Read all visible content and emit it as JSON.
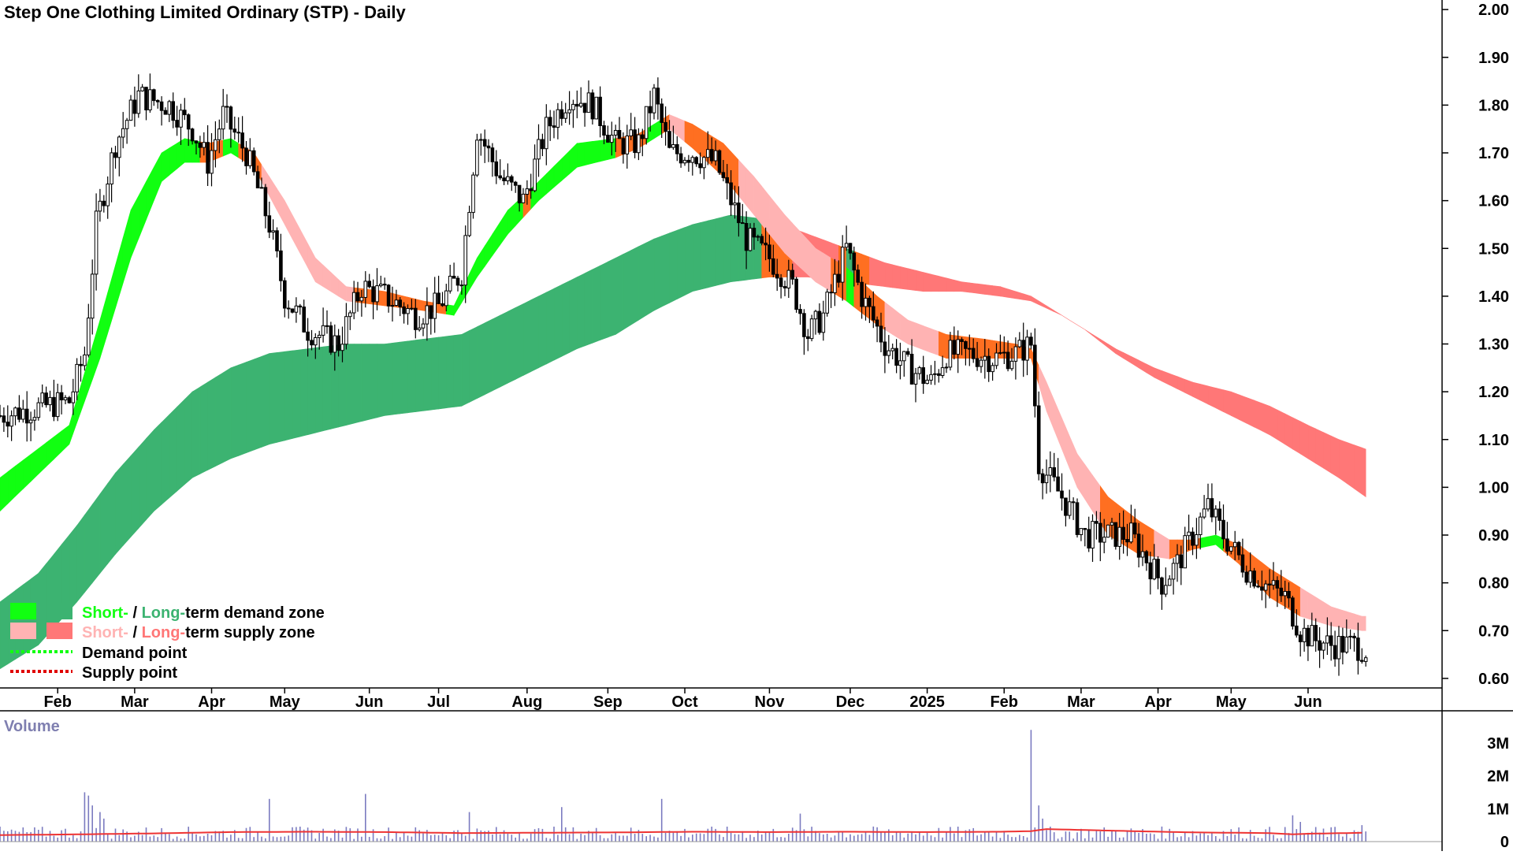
{
  "chart_data": {
    "type": "candlestick",
    "title": "Step One Clothing Limited Ordinary (STP) - Daily",
    "price_axis": {
      "ylim": [
        0.58,
        2.02
      ],
      "ticks": [
        "2.00",
        "1.90",
        "1.80",
        "1.70",
        "1.60",
        "1.50",
        "1.40",
        "1.30",
        "1.20",
        "1.10",
        "1.00",
        "0.90",
        "0.80",
        "0.70",
        "0.60"
      ]
    },
    "x_axis": {
      "range_index": [
        0,
        365
      ],
      "ticks": [
        {
          "label": "Feb",
          "i": 15
        },
        {
          "label": "Mar",
          "i": 35
        },
        {
          "label": "Apr",
          "i": 55
        },
        {
          "label": "May",
          "i": 74
        },
        {
          "label": "Jun",
          "i": 96
        },
        {
          "label": "Jul",
          "i": 114
        },
        {
          "label": "Aug",
          "i": 137
        },
        {
          "label": "Sep",
          "i": 158
        },
        {
          "label": "Oct",
          "i": 178
        },
        {
          "label": "Nov",
          "i": 200
        },
        {
          "label": "Dec",
          "i": 221
        },
        {
          "label": "2025",
          "i": 241
        },
        {
          "label": "Feb",
          "i": 261
        },
        {
          "label": "Mar",
          "i": 281
        },
        {
          "label": "Apr",
          "i": 301
        },
        {
          "label": "May",
          "i": 320
        },
        {
          "label": "Jun",
          "i": 340
        }
      ]
    },
    "price_keypoints": [
      [
        0,
        1.15
      ],
      [
        18,
        1.18
      ],
      [
        22,
        1.28
      ],
      [
        25,
        1.55
      ],
      [
        30,
        1.72
      ],
      [
        36,
        1.82
      ],
      [
        44,
        1.8
      ],
      [
        50,
        1.75
      ],
      [
        54,
        1.68
      ],
      [
        58,
        1.78
      ],
      [
        64,
        1.7
      ],
      [
        70,
        1.55
      ],
      [
        74,
        1.4
      ],
      [
        80,
        1.33
      ],
      [
        88,
        1.3
      ],
      [
        94,
        1.42
      ],
      [
        100,
        1.4
      ],
      [
        108,
        1.36
      ],
      [
        114,
        1.38
      ],
      [
        120,
        1.45
      ],
      [
        124,
        1.75
      ],
      [
        130,
        1.65
      ],
      [
        136,
        1.6
      ],
      [
        142,
        1.75
      ],
      [
        148,
        1.82
      ],
      [
        154,
        1.8
      ],
      [
        160,
        1.72
      ],
      [
        166,
        1.72
      ],
      [
        170,
        1.82
      ],
      [
        174,
        1.7
      ],
      [
        180,
        1.7
      ],
      [
        186,
        1.68
      ],
      [
        190,
        1.6
      ],
      [
        194,
        1.52
      ],
      [
        200,
        1.48
      ],
      [
        206,
        1.42
      ],
      [
        210,
        1.32
      ],
      [
        214,
        1.36
      ],
      [
        220,
        1.5
      ],
      [
        224,
        1.4
      ],
      [
        230,
        1.3
      ],
      [
        236,
        1.25
      ],
      [
        242,
        1.22
      ],
      [
        246,
        1.28
      ],
      [
        252,
        1.28
      ],
      [
        258,
        1.27
      ],
      [
        264,
        1.28
      ],
      [
        268,
        1.3
      ],
      [
        270,
        1.05
      ],
      [
        276,
        0.98
      ],
      [
        282,
        0.9
      ],
      [
        288,
        0.9
      ],
      [
        294,
        0.9
      ],
      [
        298,
        0.85
      ],
      [
        302,
        0.8
      ],
      [
        306,
        0.84
      ],
      [
        310,
        0.9
      ],
      [
        314,
        0.96
      ],
      [
        318,
        0.9
      ],
      [
        324,
        0.83
      ],
      [
        330,
        0.79
      ],
      [
        334,
        0.77
      ],
      [
        338,
        0.7
      ],
      [
        342,
        0.68
      ],
      [
        346,
        0.67
      ],
      [
        352,
        0.67
      ],
      [
        355,
        0.66
      ]
    ],
    "short_term_band": {
      "upper": [
        [
          0,
          1.02
        ],
        [
          18,
          1.13
        ],
        [
          26,
          1.35
        ],
        [
          34,
          1.58
        ],
        [
          42,
          1.7
        ],
        [
          48,
          1.73
        ],
        [
          54,
          1.72
        ],
        [
          60,
          1.73
        ],
        [
          66,
          1.7
        ],
        [
          74,
          1.6
        ],
        [
          82,
          1.48
        ],
        [
          90,
          1.42
        ],
        [
          100,
          1.41
        ],
        [
          110,
          1.39
        ],
        [
          118,
          1.38
        ],
        [
          124,
          1.48
        ],
        [
          132,
          1.58
        ],
        [
          140,
          1.64
        ],
        [
          150,
          1.72
        ],
        [
          160,
          1.73
        ],
        [
          166,
          1.74
        ],
        [
          174,
          1.78
        ],
        [
          180,
          1.76
        ],
        [
          188,
          1.72
        ],
        [
          196,
          1.65
        ],
        [
          204,
          1.57
        ],
        [
          212,
          1.5
        ],
        [
          220,
          1.46
        ],
        [
          228,
          1.4
        ],
        [
          236,
          1.35
        ],
        [
          246,
          1.32
        ],
        [
          256,
          1.31
        ],
        [
          264,
          1.3
        ],
        [
          268,
          1.29
        ],
        [
          272,
          1.22
        ],
        [
          280,
          1.07
        ],
        [
          288,
          0.98
        ],
        [
          296,
          0.93
        ],
        [
          304,
          0.89
        ],
        [
          310,
          0.89
        ],
        [
          316,
          0.9
        ],
        [
          322,
          0.88
        ],
        [
          330,
          0.83
        ],
        [
          338,
          0.79
        ],
        [
          346,
          0.75
        ],
        [
          354,
          0.73
        ]
      ],
      "lower": [
        [
          0,
          0.95
        ],
        [
          18,
          1.09
        ],
        [
          26,
          1.27
        ],
        [
          34,
          1.48
        ],
        [
          42,
          1.64
        ],
        [
          48,
          1.68
        ],
        [
          54,
          1.68
        ],
        [
          60,
          1.7
        ],
        [
          66,
          1.67
        ],
        [
          74,
          1.55
        ],
        [
          82,
          1.43
        ],
        [
          90,
          1.39
        ],
        [
          100,
          1.38
        ],
        [
          110,
          1.37
        ],
        [
          118,
          1.36
        ],
        [
          124,
          1.44
        ],
        [
          132,
          1.53
        ],
        [
          140,
          1.6
        ],
        [
          150,
          1.67
        ],
        [
          160,
          1.69
        ],
        [
          166,
          1.71
        ],
        [
          174,
          1.75
        ],
        [
          180,
          1.71
        ],
        [
          188,
          1.65
        ],
        [
          196,
          1.57
        ],
        [
          204,
          1.49
        ],
        [
          212,
          1.43
        ],
        [
          220,
          1.39
        ],
        [
          228,
          1.34
        ],
        [
          236,
          1.3
        ],
        [
          246,
          1.27
        ],
        [
          256,
          1.27
        ],
        [
          264,
          1.27
        ],
        [
          268,
          1.27
        ],
        [
          272,
          1.16
        ],
        [
          280,
          1.0
        ],
        [
          288,
          0.9
        ],
        [
          296,
          0.86
        ],
        [
          304,
          0.85
        ],
        [
          310,
          0.87
        ],
        [
          316,
          0.88
        ],
        [
          322,
          0.84
        ],
        [
          330,
          0.77
        ],
        [
          338,
          0.73
        ],
        [
          346,
          0.71
        ],
        [
          354,
          0.7
        ]
      ]
    },
    "long_term_band": {
      "upper": [
        [
          0,
          0.76
        ],
        [
          10,
          0.82
        ],
        [
          20,
          0.92
        ],
        [
          30,
          1.03
        ],
        [
          40,
          1.12
        ],
        [
          50,
          1.2
        ],
        [
          60,
          1.25
        ],
        [
          70,
          1.28
        ],
        [
          80,
          1.29
        ],
        [
          90,
          1.3
        ],
        [
          100,
          1.3
        ],
        [
          110,
          1.31
        ],
        [
          120,
          1.32
        ],
        [
          130,
          1.36
        ],
        [
          140,
          1.4
        ],
        [
          150,
          1.44
        ],
        [
          160,
          1.48
        ],
        [
          170,
          1.52
        ],
        [
          180,
          1.55
        ],
        [
          190,
          1.57
        ],
        [
          200,
          1.56
        ],
        [
          210,
          1.53
        ],
        [
          220,
          1.5
        ],
        [
          230,
          1.47
        ],
        [
          240,
          1.45
        ],
        [
          250,
          1.43
        ],
        [
          260,
          1.42
        ],
        [
          268,
          1.4
        ],
        [
          276,
          1.36
        ],
        [
          282,
          1.33
        ],
        [
          290,
          1.29
        ],
        [
          300,
          1.25
        ],
        [
          310,
          1.22
        ],
        [
          320,
          1.2
        ],
        [
          330,
          1.17
        ],
        [
          340,
          1.13
        ],
        [
          348,
          1.1
        ],
        [
          355,
          1.08
        ]
      ],
      "lower": [
        [
          0,
          0.62
        ],
        [
          10,
          0.67
        ],
        [
          20,
          0.76
        ],
        [
          30,
          0.86
        ],
        [
          40,
          0.95
        ],
        [
          50,
          1.02
        ],
        [
          60,
          1.06
        ],
        [
          70,
          1.09
        ],
        [
          80,
          1.11
        ],
        [
          90,
          1.13
        ],
        [
          100,
          1.15
        ],
        [
          110,
          1.16
        ],
        [
          120,
          1.17
        ],
        [
          130,
          1.21
        ],
        [
          140,
          1.25
        ],
        [
          150,
          1.29
        ],
        [
          160,
          1.32
        ],
        [
          170,
          1.37
        ],
        [
          180,
          1.41
        ],
        [
          190,
          1.43
        ],
        [
          200,
          1.44
        ],
        [
          210,
          1.44
        ],
        [
          220,
          1.43
        ],
        [
          230,
          1.42
        ],
        [
          240,
          1.41
        ],
        [
          250,
          1.41
        ],
        [
          260,
          1.4
        ],
        [
          268,
          1.39
        ],
        [
          276,
          1.36
        ],
        [
          282,
          1.33
        ],
        [
          290,
          1.28
        ],
        [
          300,
          1.23
        ],
        [
          310,
          1.19
        ],
        [
          320,
          1.15
        ],
        [
          330,
          1.11
        ],
        [
          340,
          1.06
        ],
        [
          348,
          1.02
        ],
        [
          355,
          0.98
        ]
      ]
    },
    "volume_axis": {
      "ylim": [
        0,
        3500000
      ],
      "ticks": [
        {
          "label": "3M",
          "v": 3000000
        },
        {
          "label": "2M",
          "v": 2000000
        },
        {
          "label": "1M",
          "v": 1000000
        },
        {
          "label": "0",
          "v": 0
        }
      ]
    },
    "volume_spikes": [
      [
        22,
        1500000
      ],
      [
        23,
        1400000
      ],
      [
        24,
        1100000
      ],
      [
        26,
        900000
      ],
      [
        27,
        700000
      ],
      [
        70,
        1300000
      ],
      [
        95,
        1450000
      ],
      [
        122,
        900000
      ],
      [
        146,
        1050000
      ],
      [
        172,
        1300000
      ],
      [
        208,
        850000
      ],
      [
        268,
        3400000
      ],
      [
        270,
        1100000
      ],
      [
        271,
        700000
      ],
      [
        336,
        800000
      ],
      [
        338,
        600000
      ],
      [
        354,
        500000
      ]
    ],
    "volume_average": [
      [
        0,
        200000
      ],
      [
        20,
        220000
      ],
      [
        40,
        250000
      ],
      [
        60,
        290000
      ],
      [
        80,
        300000
      ],
      [
        100,
        290000
      ],
      [
        120,
        260000
      ],
      [
        140,
        270000
      ],
      [
        160,
        280000
      ],
      [
        180,
        300000
      ],
      [
        200,
        290000
      ],
      [
        220,
        300000
      ],
      [
        240,
        290000
      ],
      [
        260,
        300000
      ],
      [
        268,
        320000
      ],
      [
        272,
        380000
      ],
      [
        290,
        330000
      ],
      [
        310,
        280000
      ],
      [
        330,
        260000
      ],
      [
        336,
        220000
      ],
      [
        340,
        240000
      ],
      [
        355,
        270000
      ]
    ],
    "legend": {
      "rows": [
        {
          "prefix": "Short-",
          "sep": " / ",
          "mid": "Long-",
          "suffix": "term demand zone"
        },
        {
          "prefix": "Short-",
          "sep": " / ",
          "mid": "Long-",
          "suffix": "term supply zone"
        },
        {
          "text": "Demand point"
        },
        {
          "text": "Supply point"
        }
      ]
    },
    "volume_title": "Volume",
    "colors": {
      "short_demand": "#11ff11",
      "long_demand": "#3cb371",
      "short_supply": "#ffb3b3",
      "long_supply": "#ff7777",
      "crossover": "#ff6f21",
      "demand_point": "#11ff11",
      "supply_point": "#e00000",
      "candle": "#000000",
      "volume_bar": "#7b7bc0",
      "volume_avg": "#ee3333",
      "axis": "#000000"
    }
  }
}
